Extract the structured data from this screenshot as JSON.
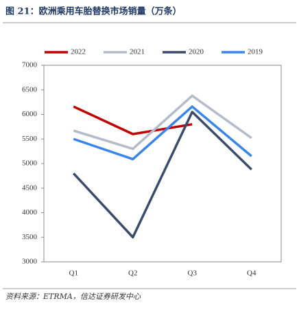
{
  "chart_data": {
    "type": "line",
    "title": "图 21：欧洲乘用车胎替换市场销量（万条）",
    "source": "资料来源：ETRMA，信达证券研发中心",
    "categories": [
      "Q1",
      "Q2",
      "Q3",
      "Q4"
    ],
    "series": [
      {
        "name": "2022",
        "color": "#c00000",
        "values": [
          6160,
          5600,
          5800,
          null
        ]
      },
      {
        "name": "2021",
        "color": "#b4bccb",
        "values": [
          5670,
          5300,
          6380,
          5520
        ]
      },
      {
        "name": "2020",
        "color": "#3b4c6b",
        "values": [
          4800,
          3500,
          6050,
          4880
        ]
      },
      {
        "name": "2019",
        "color": "#3a86e8",
        "values": [
          5500,
          5090,
          6160,
          5150
        ]
      }
    ],
    "ylim": [
      3000,
      7000
    ],
    "yticks": [
      3000,
      3500,
      4000,
      4500,
      5000,
      5500,
      6000,
      6500,
      7000
    ],
    "grid": false,
    "legend": "top"
  }
}
